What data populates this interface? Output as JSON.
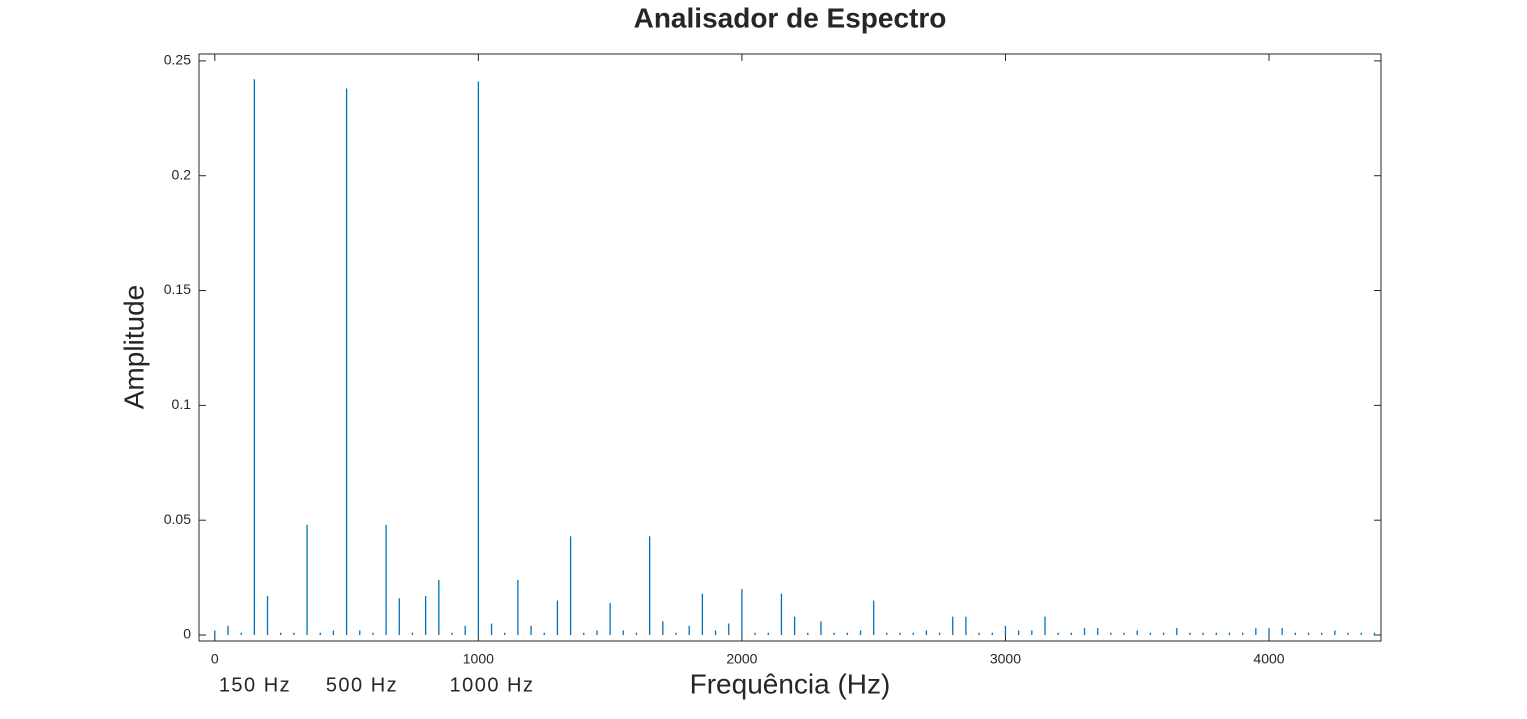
{
  "chart_data": {
    "type": "stem",
    "title": "Analisador de Espectro",
    "x_label": "Frequência (Hz)",
    "y_label": "Amplitude",
    "annotations": [
      "150 Hz",
      "500 Hz",
      "1000 Hz"
    ],
    "color": "#0072BD",
    "x": [
      0,
      50,
      100,
      150,
      200,
      250,
      300,
      350,
      400,
      450,
      500,
      550,
      600,
      650,
      700,
      750,
      800,
      850,
      900,
      950,
      1000,
      1050,
      1100,
      1150,
      1200,
      1250,
      1300,
      1350,
      1400,
      1450,
      1500,
      1550,
      1600,
      1650,
      1700,
      1750,
      1800,
      1850,
      1900,
      1950,
      2000,
      2050,
      2100,
      2150,
      2200,
      2250,
      2300,
      2350,
      2400,
      2450,
      2500,
      2550,
      2600,
      2650,
      2700,
      2750,
      2800,
      2850,
      2900,
      2950,
      3000,
      3050,
      3100,
      3150,
      3200,
      3250,
      3300,
      3350,
      3400,
      3450,
      3500,
      3550,
      3600,
      3650,
      3700,
      3750,
      3800,
      3850,
      3900,
      3950,
      4000,
      4050,
      4100,
      4150,
      4200,
      4250,
      4300,
      4350,
      4400
    ],
    "values": [
      0.002,
      0.004,
      0.001,
      0.242,
      0.017,
      0.001,
      0.001,
      0.048,
      0.001,
      0.002,
      0.238,
      0.002,
      0.001,
      0.048,
      0.016,
      0.001,
      0.017,
      0.024,
      0.001,
      0.004,
      0.241,
      0.005,
      0.001,
      0.024,
      0.004,
      0.001,
      0.015,
      0.043,
      0.001,
      0.002,
      0.014,
      0.002,
      0.001,
      0.043,
      0.006,
      0.001,
      0.004,
      0.018,
      0.002,
      0.005,
      0.02,
      0.001,
      0.001,
      0.018,
      0.008,
      0.001,
      0.006,
      0.001,
      0.001,
      0.002,
      0.015,
      0.001,
      0.001,
      0.001,
      0.002,
      0.001,
      0.008,
      0.008,
      0.001,
      0.001,
      0.004,
      0.002,
      0.002,
      0.008,
      0.001,
      0.001,
      0.003,
      0.003,
      0.001,
      0.001,
      0.002,
      0.001,
      0.001,
      0.003,
      0.001,
      0.001,
      0.001,
      0.001,
      0.001,
      0.003,
      0.003,
      0.003,
      0.001,
      0.001,
      0.001,
      0.002,
      0.001,
      0.001,
      0.001
    ],
    "xlim": [
      -60,
      4425
    ],
    "ylim": [
      -0.0026,
      0.253
    ],
    "xticks": [
      0,
      1000,
      2000,
      3000,
      4000
    ],
    "yticks": [
      0,
      0.05,
      0.1,
      0.15,
      0.2,
      0.25
    ]
  }
}
